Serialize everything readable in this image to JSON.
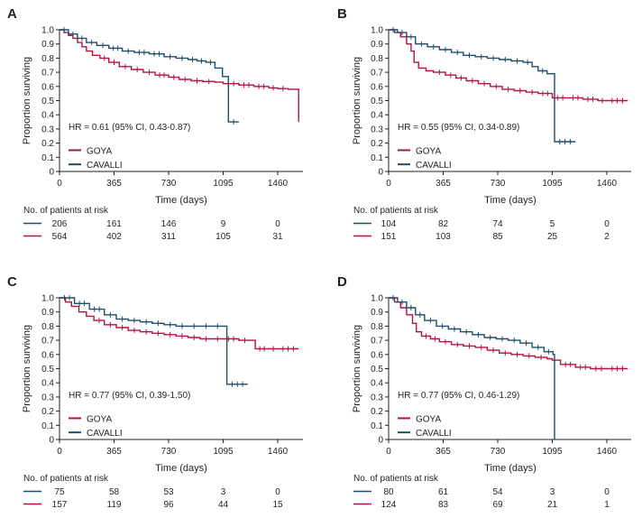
{
  "figure": {
    "ytitle": "Proportion surviving",
    "xtitle": "Time (days)",
    "risk_title": "No. of patients at risk",
    "yticks": [
      "1.0",
      "0.9",
      "0.8",
      "0.7",
      "0.6",
      "0.5",
      "0.4",
      "0.3",
      "0.2",
      "0.1",
      "0"
    ],
    "xticks": [
      "0",
      "365",
      "730",
      "1095",
      "1460"
    ],
    "colors": {
      "goya": "#b5123f",
      "cavalli": "#1f4e6b",
      "axis": "#231f20"
    }
  },
  "chart_data": [
    {
      "type": "line",
      "panel_label": "A",
      "xlabel": "Time (days)",
      "ylabel": "Proportion surviving",
      "xlim": [
        0,
        1640
      ],
      "ylim": [
        0,
        1.0
      ],
      "hr_text": "HR = 0.61 (95% CI, 0.43-0.87)",
      "series": [
        {
          "name": "GOYA",
          "x": [
            0,
            30,
            60,
            90,
            120,
            150,
            180,
            220,
            270,
            330,
            400,
            480,
            560,
            640,
            730,
            800,
            880,
            960,
            1040,
            1095,
            1200,
            1300,
            1400,
            1460,
            1530,
            1580,
            1600,
            1600
          ],
          "y": [
            1.0,
            0.98,
            0.96,
            0.94,
            0.91,
            0.88,
            0.85,
            0.82,
            0.8,
            0.77,
            0.74,
            0.72,
            0.7,
            0.68,
            0.665,
            0.65,
            0.64,
            0.635,
            0.63,
            0.62,
            0.61,
            0.6,
            0.59,
            0.585,
            0.58,
            0.58,
            0.58,
            0.35
          ]
        },
        {
          "name": "CAVALLI",
          "x": [
            0,
            60,
            120,
            180,
            250,
            330,
            420,
            500,
            600,
            700,
            780,
            860,
            920,
            980,
            1040,
            1090,
            1090,
            1130,
            1130,
            1200
          ],
          "y": [
            1.0,
            0.97,
            0.94,
            0.91,
            0.89,
            0.87,
            0.85,
            0.84,
            0.83,
            0.81,
            0.8,
            0.79,
            0.78,
            0.77,
            0.73,
            0.7,
            0.67,
            0.67,
            0.35,
            0.35
          ]
        }
      ],
      "risk_table": {
        "days": [
          0,
          365,
          730,
          1095,
          1460
        ],
        "rows": [
          {
            "name": "CAVALLI",
            "values": [
              "206",
              "161",
              "146",
              "9",
              "0"
            ]
          },
          {
            "name": "GOYA",
            "values": [
              "564",
              "402",
              "311",
              "105",
              "31"
            ]
          }
        ]
      }
    },
    {
      "type": "line",
      "panel_label": "B",
      "xlabel": "Time (days)",
      "ylabel": "Proportion surviving",
      "xlim": [
        0,
        1640
      ],
      "ylim": [
        0,
        1.0
      ],
      "hr_text": "HR = 0.55 (95% CI, 0.34-0.89)",
      "series": [
        {
          "name": "GOYA",
          "x": [
            0,
            40,
            80,
            120,
            150,
            170,
            200,
            250,
            300,
            380,
            450,
            520,
            600,
            680,
            760,
            840,
            920,
            1000,
            1095,
            1200,
            1300,
            1400,
            1460,
            1600
          ],
          "y": [
            1.0,
            0.98,
            0.95,
            0.9,
            0.85,
            0.77,
            0.73,
            0.71,
            0.7,
            0.68,
            0.66,
            0.64,
            0.62,
            0.6,
            0.58,
            0.57,
            0.56,
            0.55,
            0.52,
            0.52,
            0.51,
            0.5,
            0.5,
            0.5
          ]
        },
        {
          "name": "CAVALLI",
          "x": [
            0,
            60,
            120,
            180,
            260,
            340,
            420,
            500,
            580,
            660,
            740,
            820,
            900,
            960,
            1000,
            1060,
            1110,
            1110,
            1250
          ],
          "y": [
            1.0,
            0.98,
            0.95,
            0.9,
            0.88,
            0.86,
            0.84,
            0.82,
            0.81,
            0.8,
            0.79,
            0.78,
            0.77,
            0.74,
            0.71,
            0.69,
            0.67,
            0.21,
            0.21
          ]
        }
      ],
      "risk_table": {
        "days": [
          0,
          365,
          730,
          1095,
          1460
        ],
        "rows": [
          {
            "name": "CAVALLI",
            "values": [
              "104",
              "82",
              "74",
              "5",
              "0"
            ]
          },
          {
            "name": "GOYA",
            "values": [
              "151",
              "103",
              "85",
              "25",
              "2"
            ]
          }
        ]
      }
    },
    {
      "type": "line",
      "panel_label": "C",
      "xlabel": "Time (days)",
      "ylabel": "Proportion surviving",
      "xlim": [
        0,
        1640
      ],
      "ylim": [
        0,
        1.0
      ],
      "hr_text": "HR = 0.77 (95% CI, 0.39-1.50)",
      "series": [
        {
          "name": "GOYA",
          "x": [
            0,
            40,
            80,
            130,
            180,
            230,
            300,
            380,
            460,
            540,
            620,
            700,
            780,
            860,
            940,
            1020,
            1095,
            1200,
            1280,
            1310,
            1310,
            1400,
            1460,
            1600
          ],
          "y": [
            1.0,
            0.97,
            0.94,
            0.9,
            0.87,
            0.84,
            0.81,
            0.79,
            0.77,
            0.76,
            0.75,
            0.74,
            0.73,
            0.72,
            0.71,
            0.71,
            0.71,
            0.7,
            0.7,
            0.69,
            0.64,
            0.64,
            0.64,
            0.64
          ]
        },
        {
          "name": "CAVALLI",
          "x": [
            0,
            100,
            200,
            300,
            380,
            460,
            540,
            620,
            700,
            780,
            860,
            940,
            1020,
            1095,
            1120,
            1120,
            1260
          ],
          "y": [
            1.0,
            0.96,
            0.92,
            0.88,
            0.85,
            0.84,
            0.83,
            0.82,
            0.81,
            0.8,
            0.8,
            0.8,
            0.8,
            0.8,
            0.8,
            0.39,
            0.39
          ]
        }
      ],
      "risk_table": {
        "days": [
          0,
          365,
          730,
          1095,
          1460
        ],
        "rows": [
          {
            "name": "CAVALLI",
            "values": [
              "75",
              "58",
              "53",
              "3",
              "0"
            ]
          },
          {
            "name": "GOYA",
            "values": [
              "157",
              "119",
              "96",
              "44",
              "15"
            ]
          }
        ]
      }
    },
    {
      "type": "line",
      "panel_label": "D",
      "xlabel": "Time (days)",
      "ylabel": "Proportion surviving",
      "xlim": [
        0,
        1640
      ],
      "ylim": [
        0,
        1.0
      ],
      "hr_text": "HR = 0.77 (95% CI, 0.46-1.29)",
      "series": [
        {
          "name": "GOYA",
          "x": [
            0,
            40,
            80,
            120,
            160,
            185,
            220,
            280,
            340,
            420,
            500,
            580,
            660,
            740,
            820,
            900,
            980,
            1060,
            1095,
            1150,
            1250,
            1350,
            1460,
            1600
          ],
          "y": [
            1.0,
            0.97,
            0.93,
            0.88,
            0.82,
            0.76,
            0.73,
            0.71,
            0.69,
            0.67,
            0.66,
            0.65,
            0.63,
            0.61,
            0.6,
            0.59,
            0.58,
            0.57,
            0.56,
            0.53,
            0.51,
            0.5,
            0.5,
            0.5
          ]
        },
        {
          "name": "CAVALLI",
          "x": [
            0,
            60,
            120,
            180,
            240,
            320,
            400,
            480,
            560,
            640,
            720,
            800,
            880,
            960,
            1040,
            1100,
            1110,
            1110
          ],
          "y": [
            1.0,
            0.97,
            0.93,
            0.88,
            0.84,
            0.8,
            0.78,
            0.76,
            0.74,
            0.72,
            0.71,
            0.7,
            0.68,
            0.65,
            0.62,
            0.6,
            0.6,
            0.0
          ]
        }
      ],
      "risk_table": {
        "days": [
          0,
          365,
          730,
          1095,
          1460
        ],
        "rows": [
          {
            "name": "CAVALLI",
            "values": [
              "80",
              "61",
              "54",
              "3",
              "0"
            ]
          },
          {
            "name": "GOYA",
            "values": [
              "124",
              "83",
              "69",
              "21",
              "1"
            ]
          }
        ]
      }
    }
  ]
}
